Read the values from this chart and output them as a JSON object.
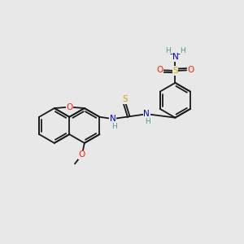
{
  "bg_color": "#e8e8e8",
  "bond_color": "#1a1a1a",
  "bond_width": 1.3,
  "atom_colors": {
    "O": "#ff2200",
    "N": "#0000cc",
    "S": "#ccaa00",
    "H": "#4a9a9a"
  },
  "figsize": [
    3.0,
    3.0
  ],
  "dpi": 100
}
